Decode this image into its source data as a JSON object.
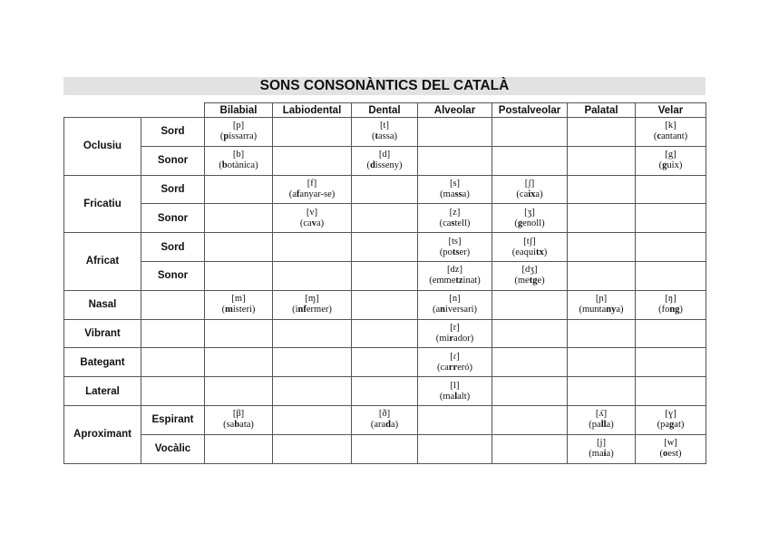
{
  "title": "SONS CONSONÀNTICS DEL CATALÀ",
  "columns": [
    "Bilabial",
    "Labiodental",
    "Dental",
    "Alveolar",
    "Postalveolar",
    "Palatal",
    "Velar"
  ],
  "groups": [
    {
      "manner": "Oclusiu",
      "rows": [
        {
          "voice": "Sord",
          "cells": [
            {
              "ipa": "[p]",
              "pre": "(",
              "bold": "p",
              "post": "issarra)"
            },
            null,
            {
              "ipa": "[t]",
              "pre": "(",
              "bold": "t",
              "post": "assa)"
            },
            null,
            null,
            null,
            {
              "ipa": "[k]",
              "pre": "(",
              "bold": "c",
              "post": "antant)"
            }
          ]
        },
        {
          "voice": "Sonor",
          "cells": [
            {
              "ipa": "[b]",
              "pre": "(",
              "bold": "b",
              "post": "otànica)"
            },
            null,
            {
              "ipa": "[d]",
              "pre": "(",
              "bold": "d",
              "post": "isseny)"
            },
            null,
            null,
            null,
            {
              "ipa": "[g]",
              "pre": "(",
              "bold": "g",
              "post": "uix)"
            }
          ]
        }
      ]
    },
    {
      "manner": "Fricatiu",
      "rows": [
        {
          "voice": "Sord",
          "cells": [
            null,
            {
              "ipa": "[f]",
              "pre": "(a",
              "bold": "f",
              "post": "anyar-se)"
            },
            null,
            {
              "ipa": "[s]",
              "pre": "(ma",
              "bold": "ss",
              "post": "a)"
            },
            {
              "ipa": "[ʃ]",
              "pre": "(ca",
              "bold": "ix",
              "post": "a)"
            },
            null,
            null
          ]
        },
        {
          "voice": "Sonor",
          "cells": [
            null,
            {
              "ipa": "[v]",
              "pre": "(ca",
              "bold": "v",
              "post": "a)"
            },
            null,
            {
              "ipa": "[z]",
              "pre": "(ca",
              "bold": "s",
              "post": "tell)"
            },
            {
              "ipa": "[ʒ]",
              "pre": "(",
              "bold": "g",
              "post": "enoll)"
            },
            null,
            null
          ]
        }
      ]
    },
    {
      "manner": "Africat",
      "rows": [
        {
          "voice": "Sord",
          "cells": [
            null,
            null,
            null,
            {
              "ipa": "[ts]",
              "pre": "(po",
              "bold": "ts",
              "post": "er)"
            },
            {
              "ipa": "[tʃ]",
              "pre": "(eaqui",
              "bold": "tx",
              "post": ")"
            },
            null,
            null
          ]
        },
        {
          "voice": "Sonor",
          "cells": [
            null,
            null,
            null,
            {
              "ipa": "[dz]",
              "pre": "(emme",
              "bold": "tz",
              "post": "inat)"
            },
            {
              "ipa": "[dʒ]",
              "pre": "(me",
              "bold": "tg",
              "post": "e)"
            },
            null,
            null
          ]
        }
      ]
    },
    {
      "manner": "Nasal",
      "rows": [
        {
          "voice": "",
          "cells": [
            {
              "ipa": "[m]",
              "pre": "(",
              "bold": "m",
              "post": "isteri)"
            },
            {
              "ipa": "[ɱ]",
              "pre": "(i",
              "bold": "nf",
              "post": "ermer)"
            },
            null,
            {
              "ipa": "[n]",
              "pre": "(a",
              "bold": "n",
              "post": "iversari)"
            },
            null,
            {
              "ipa": "[ɲ]",
              "pre": "(munta",
              "bold": "ny",
              "post": "a)"
            },
            {
              "ipa": "[ŋ]",
              "pre": "(fo",
              "bold": "ng",
              "post": ")"
            }
          ]
        }
      ]
    },
    {
      "manner": "Vibrant",
      "rows": [
        {
          "voice": "",
          "cells": [
            null,
            null,
            null,
            {
              "ipa": "[r]",
              "pre": "(mi",
              "bold": "r",
              "post": "ador)"
            },
            null,
            null,
            null
          ]
        }
      ]
    },
    {
      "manner": "Bategant",
      "rows": [
        {
          "voice": "",
          "cells": [
            null,
            null,
            null,
            {
              "ipa": "[ɾ]",
              "pre": "(ca",
              "bold": "rr",
              "post": "eró)"
            },
            null,
            null,
            null
          ]
        }
      ]
    },
    {
      "manner": "Lateral",
      "rows": [
        {
          "voice": "",
          "cells": [
            null,
            null,
            null,
            {
              "ipa": "[l]",
              "pre": "(ma",
              "bold": "l",
              "post": "alt)"
            },
            null,
            null,
            null
          ]
        }
      ]
    },
    {
      "manner": "Aproximant",
      "rows": [
        {
          "voice": "Espirant",
          "cells": [
            {
              "ipa": "[β]",
              "pre": "(sa",
              "bold": "b",
              "post": "ata)"
            },
            null,
            {
              "ipa": "[ð]",
              "pre": "(ara",
              "bold": "d",
              "post": "a)"
            },
            null,
            null,
            {
              "ipa": "[ʎ]",
              "pre": "(pa",
              "bold": "ll",
              "post": "a)"
            },
            {
              "ipa": "[ɣ]",
              "pre": "(pa",
              "bold": "g",
              "post": "at)"
            }
          ]
        },
        {
          "voice": "Vocàlic",
          "cells": [
            null,
            null,
            null,
            null,
            null,
            {
              "ipa": "[j]",
              "pre": "(ma",
              "bold": "i",
              "post": "a)"
            },
            {
              "ipa": "[w]",
              "pre": "(",
              "bold": "o",
              "post": "est)"
            }
          ]
        }
      ]
    }
  ]
}
